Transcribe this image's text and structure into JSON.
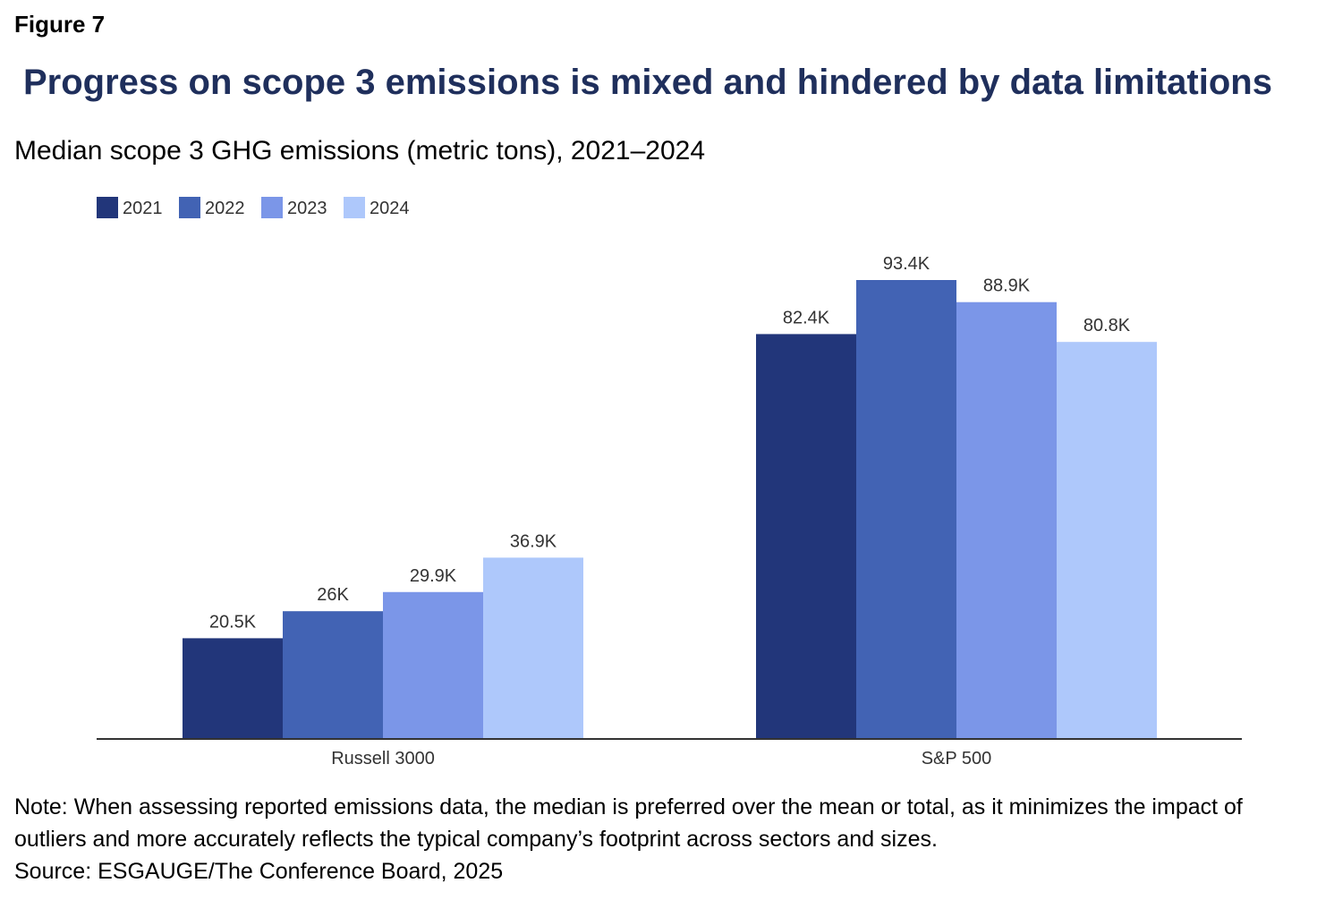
{
  "figure_label": "Figure 7",
  "title": "Progress on scope 3 emissions is mixed and hindered by data limitations",
  "subtitle": "Median scope 3 GHG emissions (metric tons), 2021–2024",
  "note": "Note: When assessing reported emissions data, the median is preferred over the mean or total, as it minimizes the impact of outliers and more accurately reflects the typical company’s footprint across sectors and sizes.",
  "source": "Source: ESGAUGE/The Conference Board, 2025",
  "colors": {
    "title": "#1f2f5c",
    "series": [
      "#22367a",
      "#4263b4",
      "#7b96e8",
      "#aec8fb"
    ],
    "axis": "#333333"
  },
  "chart_data": {
    "type": "bar",
    "categories": [
      "Russell 3000",
      "S&P 500"
    ],
    "series": [
      {
        "name": "2021",
        "values": [
          20500,
          82400
        ],
        "labels": [
          "20.5K",
          "82.4K"
        ]
      },
      {
        "name": "2022",
        "values": [
          26000,
          93400
        ],
        "labels": [
          "26K",
          "93.4K"
        ]
      },
      {
        "name": "2023",
        "values": [
          29900,
          88900
        ],
        "labels": [
          "29.9K",
          "88.9K"
        ]
      },
      {
        "name": "2024",
        "values": [
          36900,
          80800
        ],
        "labels": [
          "36.9K",
          "80.8K"
        ]
      }
    ],
    "legend_position": "top-left",
    "grid": false,
    "ylim": [
      0,
      93400
    ],
    "xlabel": "",
    "ylabel": ""
  }
}
